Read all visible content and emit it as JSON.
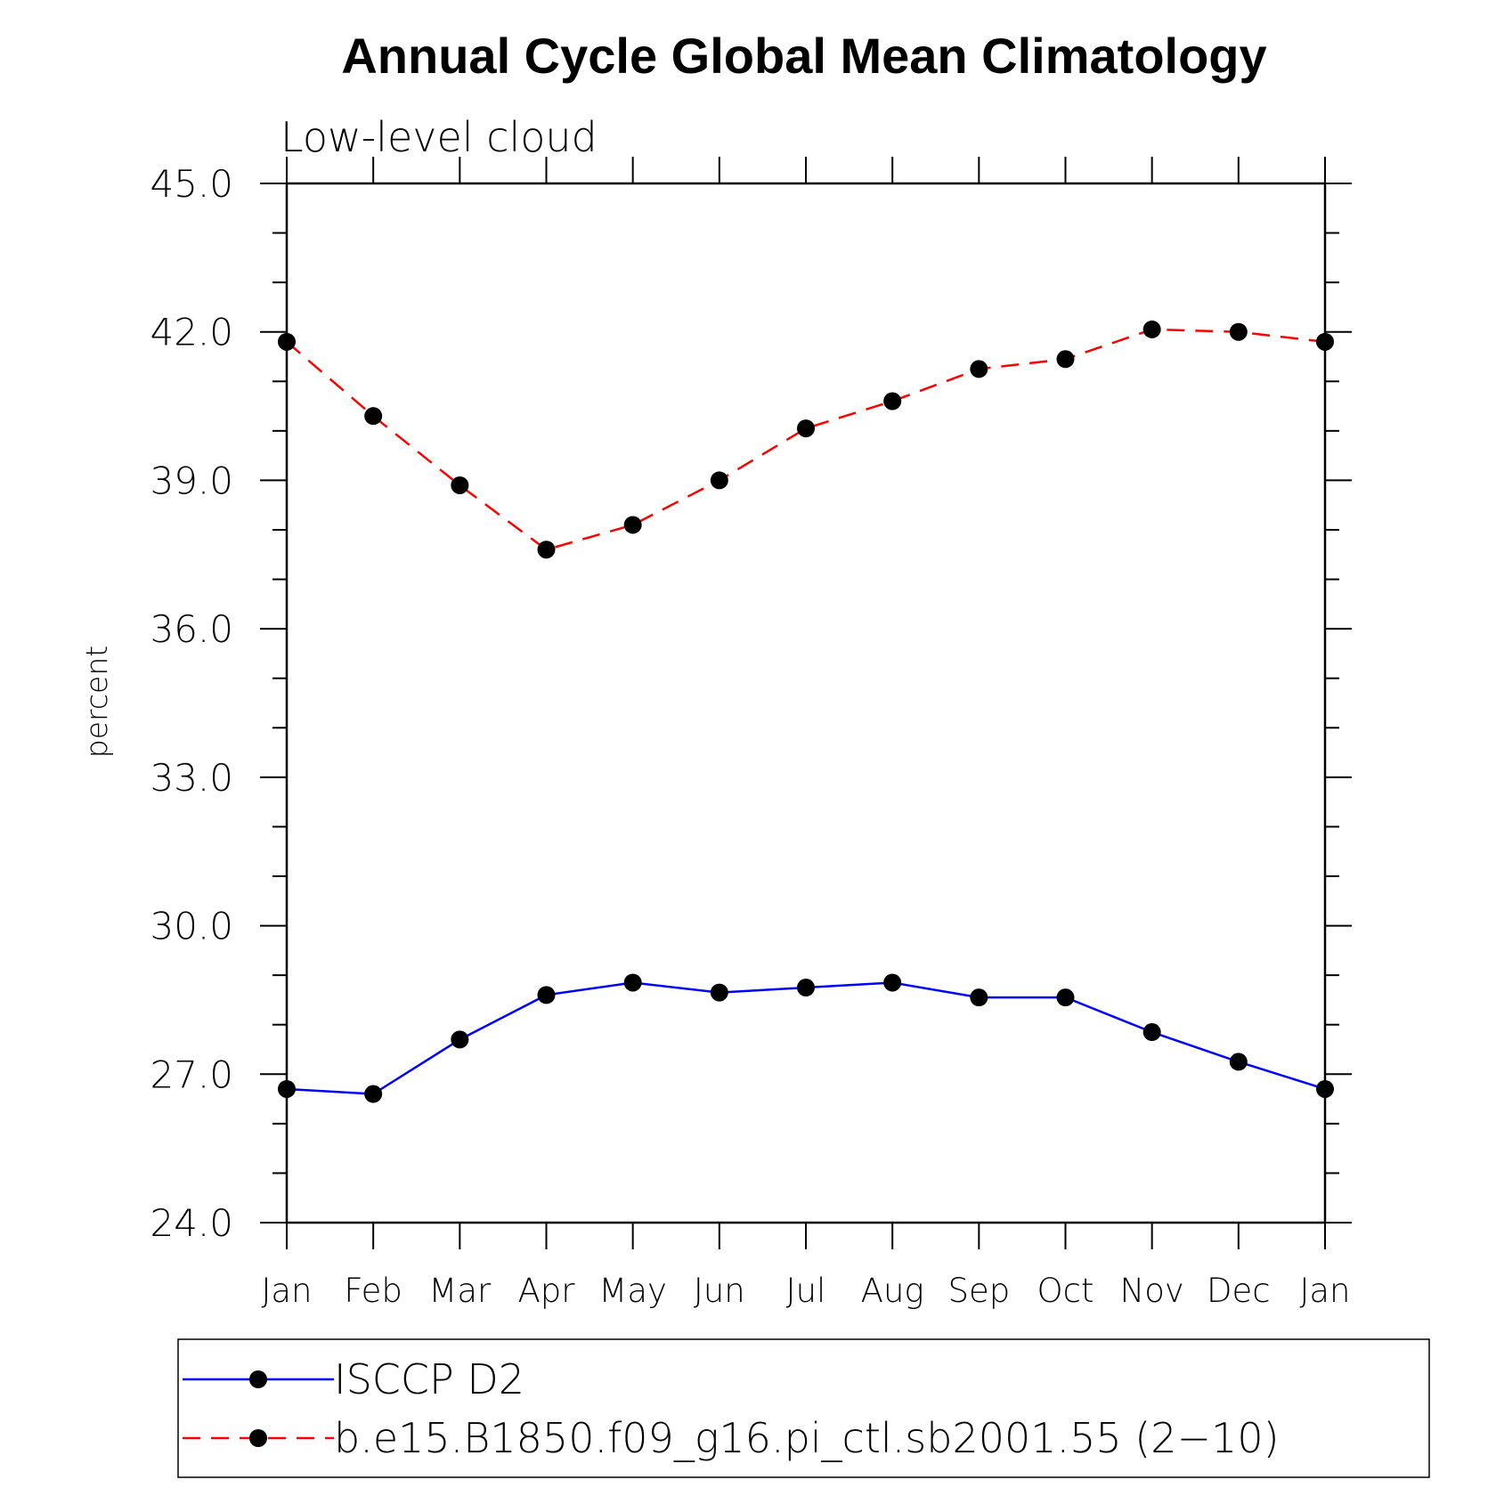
{
  "chart_data": {
    "type": "line",
    "title": "Annual Cycle Global Mean Climatology",
    "subtitle": "Low-level cloud",
    "xlabel": "",
    "ylabel": "percent",
    "categories": [
      "Jan",
      "Feb",
      "Mar",
      "Apr",
      "May",
      "Jun",
      "Jul",
      "Aug",
      "Sep",
      "Oct",
      "Nov",
      "Dec",
      "Jan"
    ],
    "ylim": [
      24.0,
      45.0
    ],
    "yticks": [
      "24.0",
      "27.0",
      "30.0",
      "33.0",
      "36.0",
      "39.0",
      "42.0",
      "45.0"
    ],
    "grid": false,
    "legend_position": "bottom",
    "series": [
      {
        "name": "ISCCP D2",
        "color": "#0000ff",
        "line_style": "solid",
        "marker": "filled-circle",
        "values": [
          26.7,
          26.6,
          27.7,
          28.6,
          28.85,
          28.65,
          28.75,
          28.85,
          28.55,
          28.55,
          27.85,
          27.25,
          26.7
        ]
      },
      {
        "name": "b.e15.B1850.f09_g16.pi_ctl.sb2001.55 (2−10)",
        "color": "#ff0000",
        "line_style": "dashed",
        "marker": "filled-circle",
        "values": [
          41.8,
          40.3,
          38.9,
          37.6,
          38.1,
          39.0,
          40.05,
          40.6,
          41.25,
          41.45,
          42.05,
          42.0,
          41.8
        ]
      }
    ]
  }
}
